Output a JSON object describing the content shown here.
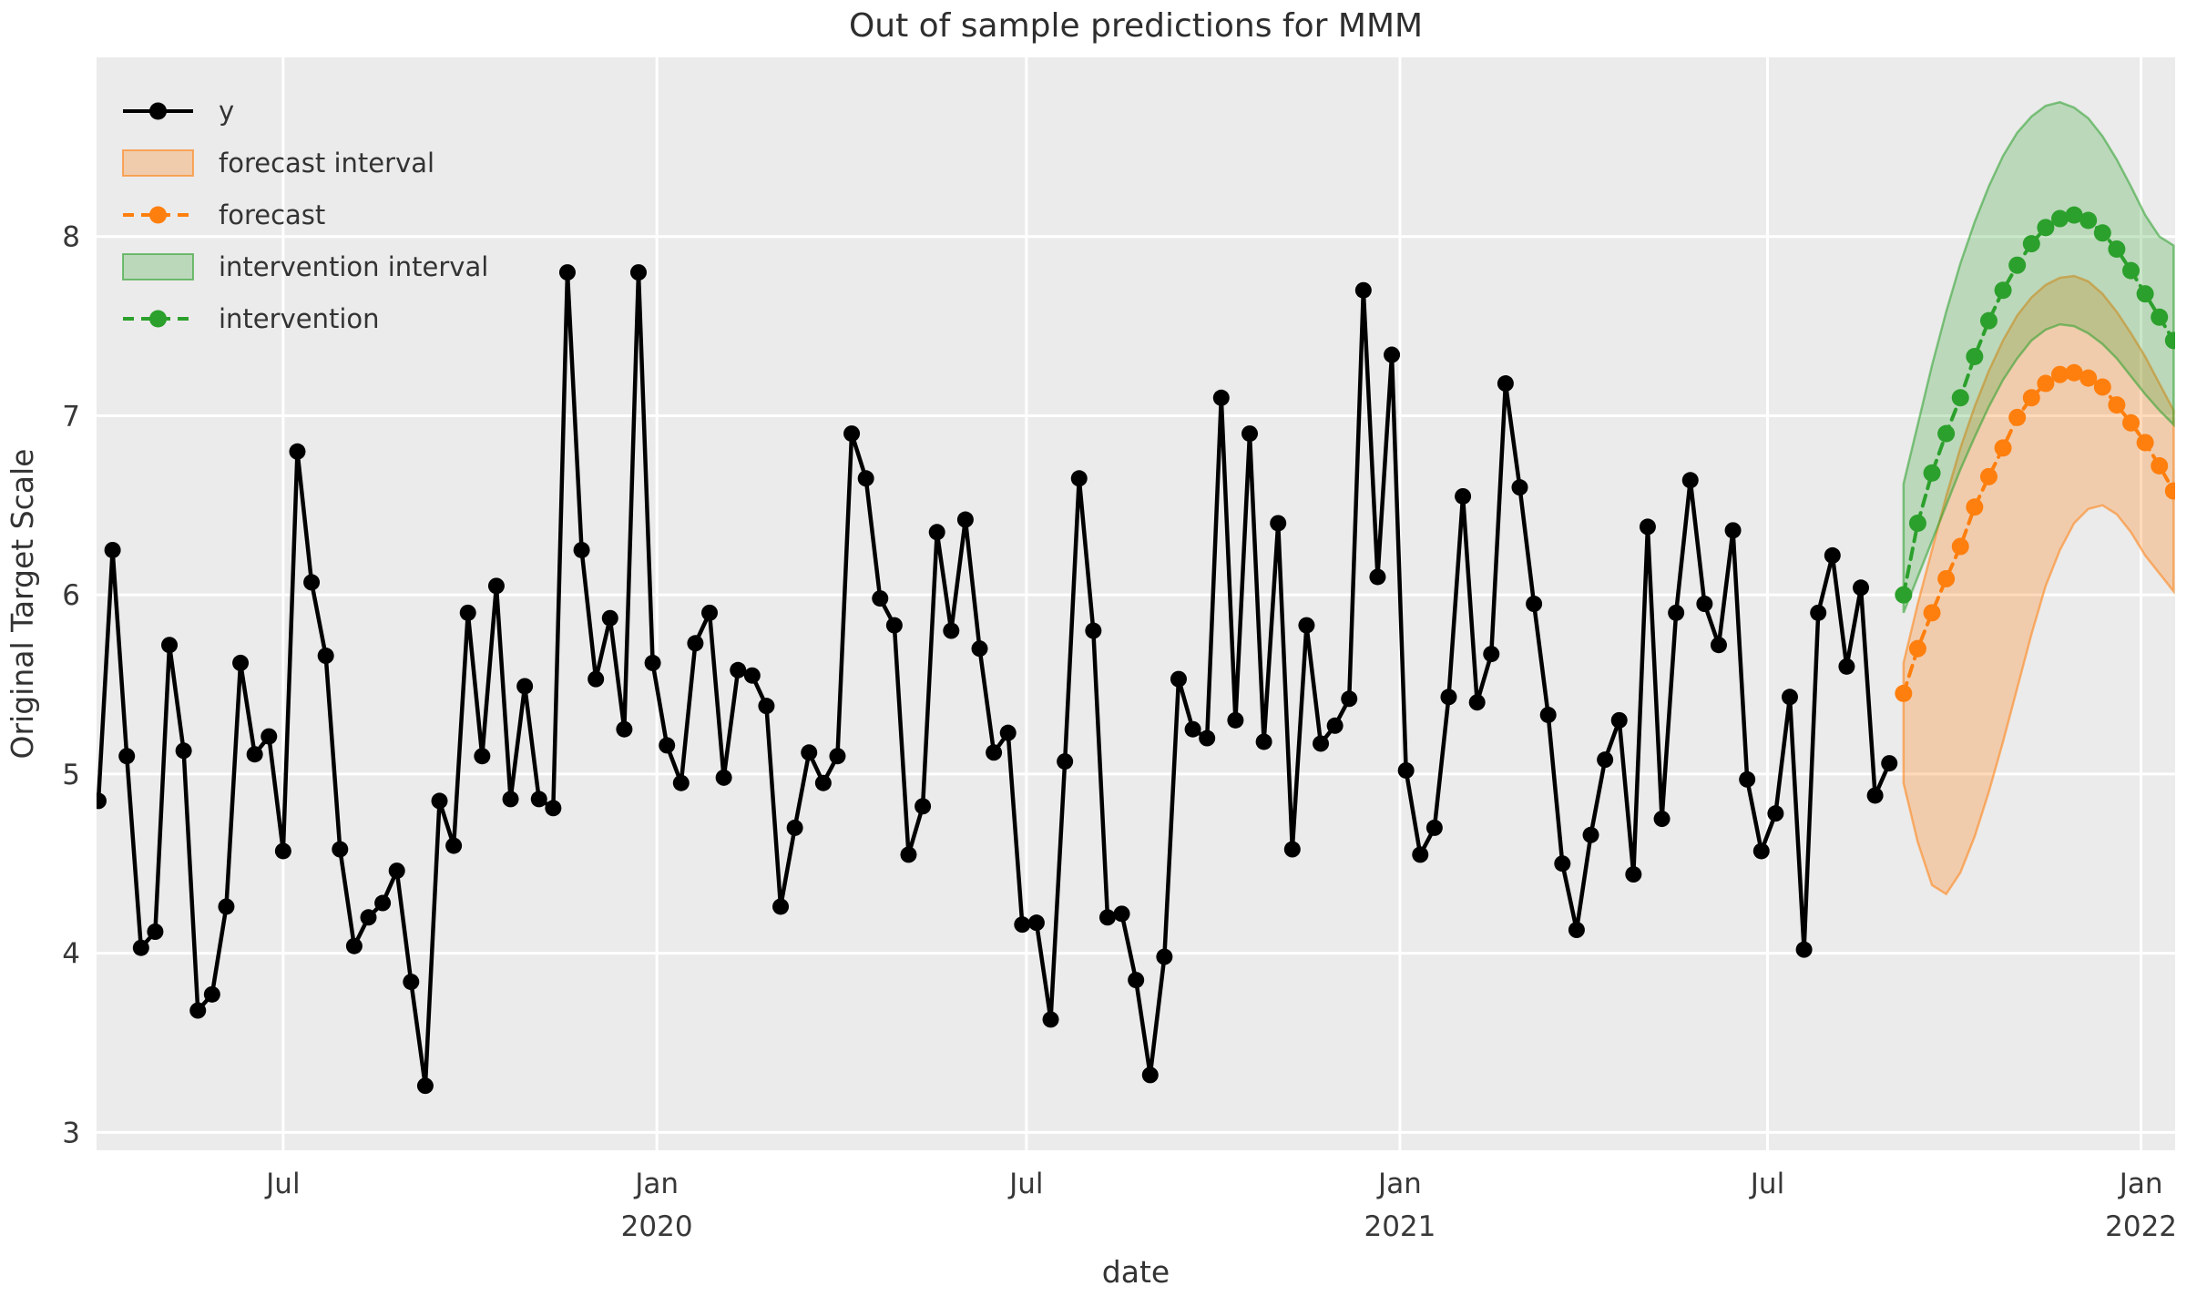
{
  "colors": {
    "background": "#ebebeb",
    "grid": "#ffffff",
    "text": "#333333",
    "y_series": "#000000",
    "forecast": "#ff7f0e",
    "intervention": "#2ca02c",
    "forecast_fill": "rgba(255,127,14,0.28)",
    "forecast_edge": "rgba(255,127,14,0.55)",
    "intervention_fill": "rgba(44,160,44,0.25)",
    "intervention_edge": "rgba(44,160,44,0.55)"
  },
  "legend": {
    "items": [
      {
        "label": "y",
        "swatch": "line",
        "color": "#000000",
        "dashed": false
      },
      {
        "label": "forecast interval",
        "swatch": "patch",
        "fill": "rgba(255,127,14,0.28)",
        "edge": "rgba(255,127,14,0.6)"
      },
      {
        "label": "forecast",
        "swatch": "line",
        "color": "#ff7f0e",
        "dashed": true
      },
      {
        "label": "intervention interval",
        "swatch": "patch",
        "fill": "rgba(44,160,44,0.25)",
        "edge": "rgba(44,160,44,0.6)"
      },
      {
        "label": "intervention",
        "swatch": "line",
        "color": "#2ca02c",
        "dashed": true
      }
    ]
  },
  "chart_data": {
    "type": "line",
    "title": "Out of sample predictions for MMM",
    "xlabel": "date",
    "ylabel": "Original Target Scale",
    "grid": true,
    "legend_position": "upper left",
    "x_frequency": "weekly",
    "y_axis": {
      "ticks": [
        3,
        4,
        5,
        6,
        7,
        8
      ],
      "lim": [
        2.9,
        9.0
      ]
    },
    "x_axis": {
      "ticks": [
        {
          "week": 13.0,
          "label": "Jul"
        },
        {
          "week": 39.29,
          "label": "Jan",
          "sublabel": "2020"
        },
        {
          "week": 65.29,
          "label": "Jul"
        },
        {
          "week": 91.57,
          "label": "Jan",
          "sublabel": "2021"
        },
        {
          "week": 117.43,
          "label": "Jul"
        },
        {
          "week": 143.71,
          "label": "Jan",
          "sublabel": "2022"
        }
      ]
    },
    "series": [
      {
        "name": "y",
        "color": "#000000",
        "style": "solid",
        "marker": true,
        "start_week": 0,
        "values": [
          4.85,
          6.25,
          5.1,
          4.03,
          4.12,
          5.72,
          5.13,
          3.68,
          3.77,
          4.26,
          5.62,
          5.11,
          5.21,
          4.57,
          6.8,
          6.07,
          5.66,
          4.58,
          4.04,
          4.2,
          4.28,
          4.46,
          3.84,
          3.26,
          4.85,
          4.6,
          5.9,
          5.1,
          6.05,
          4.86,
          5.49,
          4.86,
          4.81,
          7.8,
          6.25,
          5.53,
          5.87,
          5.25,
          7.8,
          5.62,
          5.16,
          4.95,
          5.73,
          5.9,
          4.98,
          5.58,
          5.55,
          5.38,
          4.26,
          4.7,
          5.12,
          4.95,
          5.1,
          6.9,
          6.65,
          5.98,
          5.83,
          4.55,
          4.82,
          6.35,
          5.8,
          6.42,
          5.7,
          5.12,
          5.23,
          4.16,
          4.17,
          3.63,
          5.07,
          6.65,
          5.8,
          4.2,
          4.22,
          3.85,
          3.32,
          3.98,
          5.53,
          5.25,
          5.2,
          7.1,
          5.3,
          6.9,
          5.18,
          6.4,
          4.58,
          5.83,
          5.17,
          5.27,
          5.42,
          7.7,
          6.1,
          7.34,
          5.02,
          4.55,
          4.7,
          5.43,
          6.55,
          5.4,
          5.67,
          7.18,
          6.6,
          5.95,
          5.33,
          4.5,
          4.13,
          4.66,
          5.08,
          5.3,
          4.44,
          6.38,
          4.75,
          5.9,
          6.64,
          5.95,
          5.72,
          6.36,
          4.97,
          4.57,
          4.78,
          5.43,
          4.02,
          5.9,
          6.22,
          5.6,
          6.04,
          4.88,
          5.06
        ]
      },
      {
        "name": "forecast",
        "color": "#ff7f0e",
        "style": "dashed",
        "marker": true,
        "start_week": 127,
        "values": [
          5.45,
          5.7,
          5.9,
          6.09,
          6.27,
          6.49,
          6.66,
          6.82,
          6.99,
          7.1,
          7.18,
          7.23,
          7.24,
          7.21,
          7.16,
          7.06,
          6.96,
          6.85,
          6.72,
          6.58
        ],
        "interval": {
          "name": "forecast interval",
          "fill": "rgba(255,127,14,0.28)",
          "edge": "rgba(255,127,14,0.55)",
          "lower": [
            4.95,
            4.62,
            4.38,
            4.33,
            4.45,
            4.65,
            4.9,
            5.18,
            5.48,
            5.78,
            6.05,
            6.25,
            6.4,
            6.48,
            6.5,
            6.45,
            6.35,
            6.22,
            6.12,
            6.02
          ],
          "upper": [
            5.62,
            5.95,
            6.25,
            6.55,
            6.82,
            7.05,
            7.25,
            7.42,
            7.56,
            7.66,
            7.73,
            7.77,
            7.78,
            7.75,
            7.68,
            7.58,
            7.46,
            7.33,
            7.18,
            7.03
          ]
        }
      },
      {
        "name": "intervention",
        "color": "#2ca02c",
        "style": "dashed",
        "marker": true,
        "start_week": 127,
        "values": [
          6.0,
          6.4,
          6.68,
          6.9,
          7.1,
          7.33,
          7.53,
          7.7,
          7.84,
          7.96,
          8.05,
          8.1,
          8.12,
          8.09,
          8.02,
          7.93,
          7.81,
          7.68,
          7.55,
          7.42
        ],
        "interval": {
          "name": "intervention interval",
          "fill": "rgba(44,160,44,0.25)",
          "edge": "rgba(44,160,44,0.55)",
          "lower": [
            5.9,
            6.1,
            6.3,
            6.5,
            6.7,
            6.88,
            7.05,
            7.2,
            7.32,
            7.42,
            7.48,
            7.51,
            7.5,
            7.46,
            7.4,
            7.32,
            7.22,
            7.12,
            7.03,
            6.95
          ],
          "upper": [
            6.62,
            6.95,
            7.28,
            7.58,
            7.85,
            8.08,
            8.28,
            8.45,
            8.58,
            8.67,
            8.73,
            8.75,
            8.72,
            8.66,
            8.56,
            8.43,
            8.28,
            8.12,
            8.0,
            7.95
          ]
        }
      }
    ]
  }
}
